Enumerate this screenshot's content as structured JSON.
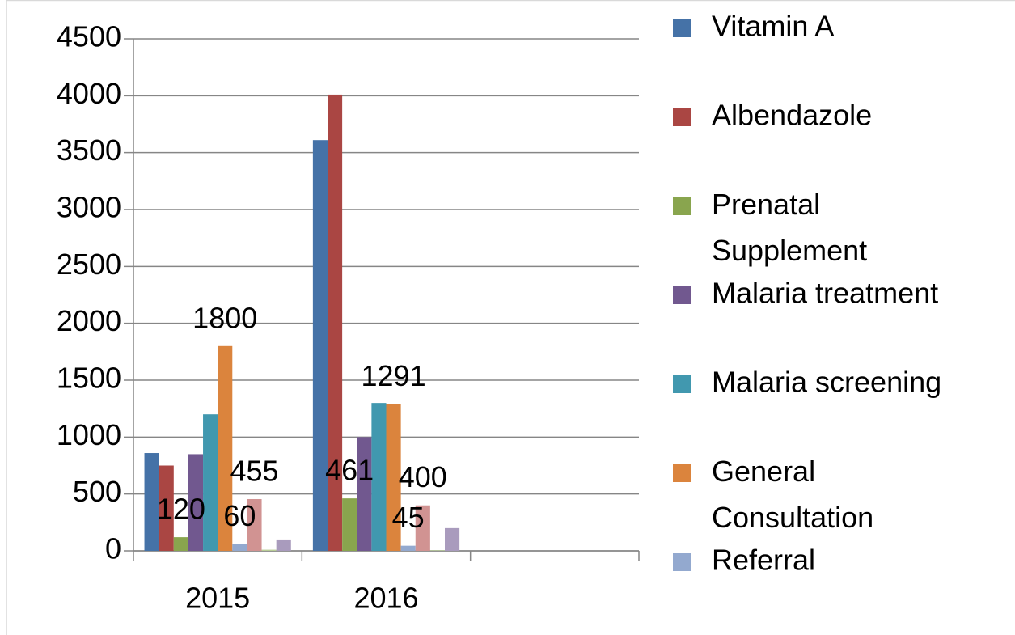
{
  "chart_data": {
    "type": "bar",
    "categories": [
      "2015",
      "2016",
      null
    ],
    "ylim": [
      0,
      4500
    ],
    "yticks": [
      0,
      500,
      1000,
      1500,
      2000,
      2500,
      3000,
      3500,
      4000,
      4500
    ],
    "grid": true,
    "legend": "right",
    "series": [
      {
        "name": "Vitamin A",
        "color": "#4572A7",
        "values": [
          860,
          3610,
          null
        ]
      },
      {
        "name": "Albendazole",
        "color": "#AA4643",
        "values": [
          750,
          4010,
          null
        ]
      },
      {
        "name": "Prenatal Supplement",
        "color": "#89A54E",
        "values": [
          120,
          461,
          null
        ],
        "data_labels": true
      },
      {
        "name": "Malaria treatment",
        "color": "#71588F",
        "values": [
          850,
          1000,
          null
        ]
      },
      {
        "name": "Malaria screening",
        "color": "#4198AF",
        "values": [
          1200,
          1300,
          null
        ]
      },
      {
        "name": "General Consultation",
        "color": "#DB843D",
        "values": [
          1800,
          1291,
          null
        ],
        "data_labels": true
      },
      {
        "name": "Referral",
        "color": "#93A9CF",
        "values": [
          60,
          45,
          null
        ],
        "data_labels": true
      },
      {
        "name": null,
        "color": "#D19392",
        "values": [
          455,
          400,
          null
        ],
        "data_labels": true
      },
      {
        "name": null,
        "color": "#B9CD96",
        "values": [
          10,
          5,
          null
        ]
      },
      {
        "name": null,
        "color": "#A99BBD",
        "values": [
          100,
          200,
          null
        ]
      }
    ]
  }
}
